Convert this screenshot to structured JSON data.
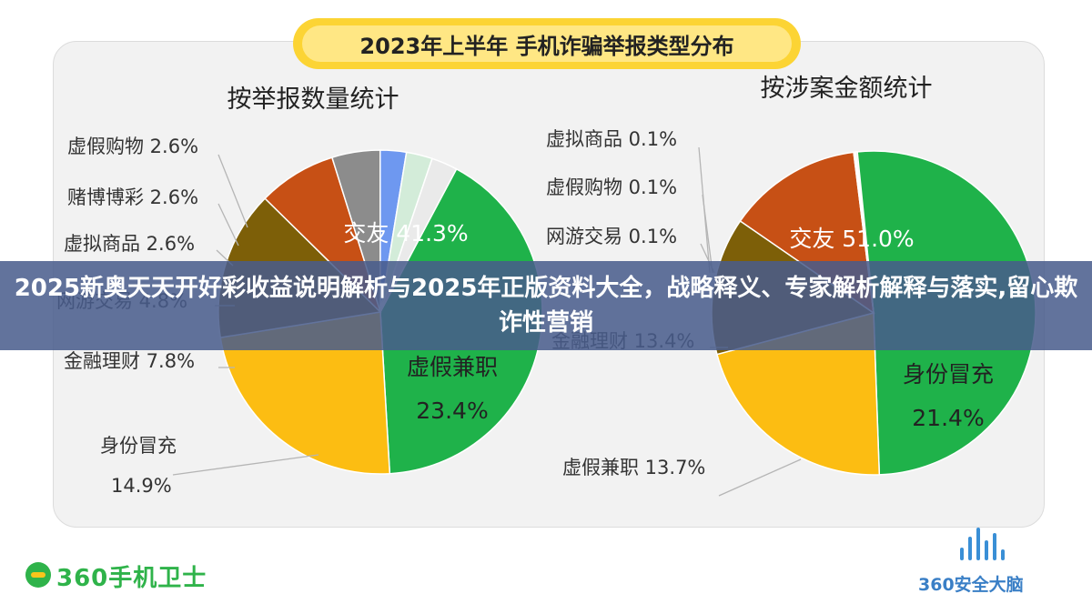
{
  "title": "2023年上半年 手机诈骗举报类型分布",
  "banner": "2025新奥天天开好彩收益说明解析与2025年正版资料大全，战略释义、专家解析解释与落实,留心欺诈性营销",
  "logos": {
    "left": "360手机卫士",
    "right": "360安全大脑"
  },
  "chart_data": [
    {
      "type": "pie",
      "title": "按举报数量统计",
      "slices": [
        {
          "label": "交友",
          "value": 41.3,
          "color": "#1fb24a",
          "text": "交友 41.3%"
        },
        {
          "label": "虚假兼职",
          "value": 23.4,
          "color": "#fcbd12",
          "text": "虚假兼职",
          "text2": "23.4%"
        },
        {
          "label": "身份冒充",
          "value": 14.9,
          "color": "#7d5f08",
          "text": "身份冒充",
          "text2": "14.9%"
        },
        {
          "label": "金融理财",
          "value": 7.8,
          "color": "#c75015",
          "text": "金融理财 7.8%"
        },
        {
          "label": "网游交易",
          "value": 4.8,
          "color": "#8c8c8c",
          "text": "网游交易 4.8%"
        },
        {
          "label": "虚拟商品",
          "value": 2.6,
          "color": "#6e98f0",
          "text": "虚拟商品 2.6%"
        },
        {
          "label": "赌博博彩",
          "value": 2.6,
          "color": "#d3ecd9",
          "text": "赌博博彩 2.6%"
        },
        {
          "label": "虚假购物",
          "value": 2.6,
          "color": "#eaeaea",
          "text": "虚假购物 2.6%"
        }
      ]
    },
    {
      "type": "pie",
      "title": "按涉案金额统计",
      "slices": [
        {
          "label": "交友",
          "value": 51.0,
          "color": "#1fb24a",
          "text": "交友 51.0%"
        },
        {
          "label": "身份冒充",
          "value": 21.4,
          "color": "#fcbd12",
          "text": "身份冒充",
          "text2": "21.4%"
        },
        {
          "label": "虚假兼职",
          "value": 13.7,
          "color": "#7d5f08",
          "text": "虚假兼职 13.7%"
        },
        {
          "label": "金融理财",
          "value": 13.4,
          "color": "#c75015",
          "text": "金融理财 13.4%"
        },
        {
          "label": "网游交易",
          "value": 0.1,
          "color": "#8c8c8c",
          "text": "网游交易 0.1%"
        },
        {
          "label": "虚假购物",
          "value": 0.1,
          "color": "#6e98f0",
          "text": "虚假购物 0.1%"
        },
        {
          "label": "虚拟商品",
          "value": 0.1,
          "color": "#d3ecd9",
          "text": "虚拟商品 0.1%"
        }
      ]
    }
  ]
}
